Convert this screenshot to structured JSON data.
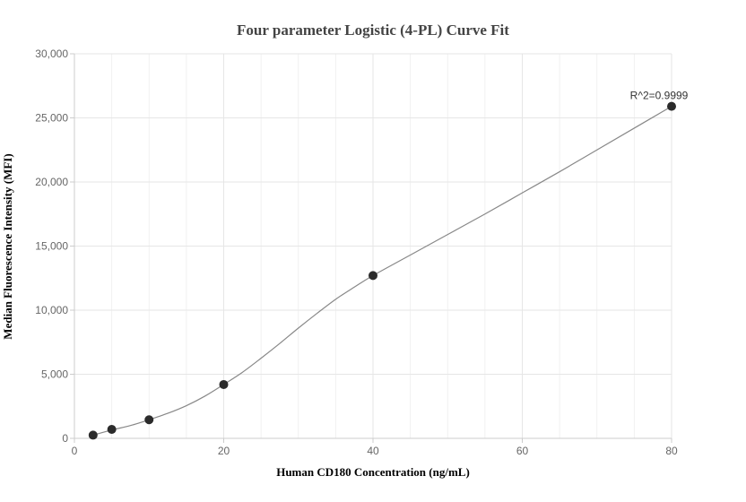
{
  "chart_data": {
    "type": "scatter",
    "title": "Four parameter Logistic (4-PL) Curve Fit",
    "xlabel": "Human CD180 Concentration (ng/mL)",
    "ylabel": "Median Fluorescence Intensity (MFI)",
    "xlim": [
      0,
      80
    ],
    "ylim": [
      0,
      30000
    ],
    "x_ticks": [
      0,
      20,
      40,
      60,
      80
    ],
    "x_tick_labels": [
      "0",
      "20",
      "40",
      "60",
      "80"
    ],
    "y_ticks": [
      0,
      5000,
      10000,
      15000,
      20000,
      25000,
      30000
    ],
    "y_tick_labels": [
      "0",
      "5,000",
      "10,000",
      "15,000",
      "20,000",
      "25,000",
      "30,000"
    ],
    "grid": true,
    "series": [
      {
        "points": [
          {
            "x": 2.5,
            "y": 250
          },
          {
            "x": 5,
            "y": 700
          },
          {
            "x": 10,
            "y": 1450
          },
          {
            "x": 20,
            "y": 4200
          },
          {
            "x": 40,
            "y": 12700
          },
          {
            "x": 80,
            "y": 25900
          }
        ]
      }
    ],
    "fit_curve": [
      {
        "x": 2.5,
        "y": 250
      },
      {
        "x": 5,
        "y": 650
      },
      {
        "x": 7.5,
        "y": 1000
      },
      {
        "x": 10,
        "y": 1450
      },
      {
        "x": 12.5,
        "y": 1950
      },
      {
        "x": 15,
        "y": 2550
      },
      {
        "x": 17.5,
        "y": 3300
      },
      {
        "x": 20,
        "y": 4200
      },
      {
        "x": 22.5,
        "y": 5150
      },
      {
        "x": 25,
        "y": 6250
      },
      {
        "x": 27.5,
        "y": 7400
      },
      {
        "x": 30,
        "y": 8600
      },
      {
        "x": 32.5,
        "y": 9750
      },
      {
        "x": 35,
        "y": 10850
      },
      {
        "x": 37.5,
        "y": 11800
      },
      {
        "x": 40,
        "y": 12700
      },
      {
        "x": 45,
        "y": 14300
      },
      {
        "x": 50,
        "y": 15900
      },
      {
        "x": 55,
        "y": 17500
      },
      {
        "x": 60,
        "y": 19150
      },
      {
        "x": 65,
        "y": 20800
      },
      {
        "x": 70,
        "y": 22500
      },
      {
        "x": 75,
        "y": 24200
      },
      {
        "x": 80,
        "y": 25900
      }
    ],
    "annotation": {
      "text": "R^2=0.9999",
      "x": 80,
      "y": 25900
    },
    "colors": {
      "marker": "#2b2b2b",
      "curve": "#888888",
      "grid": "#e6e6e6",
      "axis": "#cccccc"
    }
  }
}
